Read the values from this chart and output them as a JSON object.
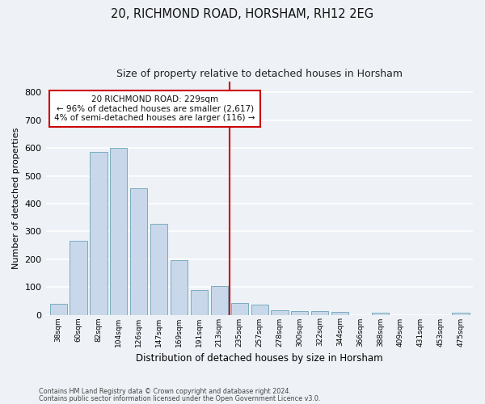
{
  "title": "20, RICHMOND ROAD, HORSHAM, RH12 2EG",
  "subtitle": "Size of property relative to detached houses in Horsham",
  "xlabel": "Distribution of detached houses by size in Horsham",
  "ylabel": "Number of detached properties",
  "categories": [
    "38sqm",
    "60sqm",
    "82sqm",
    "104sqm",
    "126sqm",
    "147sqm",
    "169sqm",
    "191sqm",
    "213sqm",
    "235sqm",
    "257sqm",
    "278sqm",
    "300sqm",
    "322sqm",
    "344sqm",
    "366sqm",
    "388sqm",
    "409sqm",
    "431sqm",
    "453sqm",
    "475sqm"
  ],
  "values": [
    40,
    265,
    585,
    600,
    455,
    328,
    195,
    90,
    102,
    42,
    35,
    15,
    13,
    12,
    9,
    0,
    8,
    0,
    0,
    0,
    8
  ],
  "bar_color": "#c8d8ea",
  "bar_edge_color": "#7aabbf",
  "reference_line_x": 8.5,
  "reference_line_color": "#cc0000",
  "annotation_text": "20 RICHMOND ROAD: 229sqm\n← 96% of detached houses are smaller (2,617)\n4% of semi-detached houses are larger (116) →",
  "annotation_box_color": "#ffffff",
  "annotation_box_edge_color": "#cc0000",
  "ylim": [
    0,
    840
  ],
  "yticks": [
    0,
    100,
    200,
    300,
    400,
    500,
    600,
    700,
    800
  ],
  "background_color": "#eef2f7",
  "grid_color": "#ffffff",
  "footer_line1": "Contains HM Land Registry data © Crown copyright and database right 2024.",
  "footer_line2": "Contains public sector information licensed under the Open Government Licence v3.0."
}
